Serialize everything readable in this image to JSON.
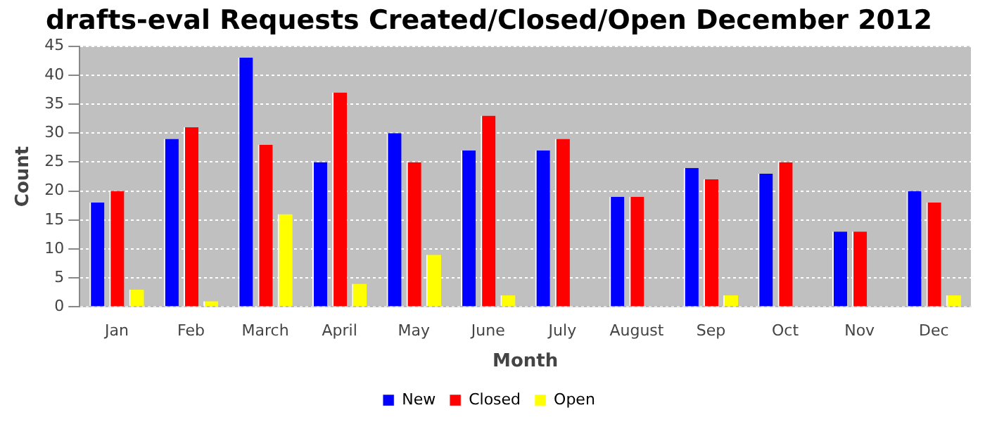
{
  "chart_data": {
    "type": "bar",
    "title": "drafts-eval Requests Created/Closed/Open December 2012",
    "xlabel": "Month",
    "ylabel": "Count",
    "categories": [
      "Jan",
      "Feb",
      "March",
      "April",
      "May",
      "June",
      "July",
      "August",
      "Sep",
      "Oct",
      "Nov",
      "Dec"
    ],
    "series": [
      {
        "name": "New",
        "color": "#0000ff",
        "values": [
          18,
          29,
          43,
          25,
          30,
          27,
          27,
          19,
          24,
          23,
          13,
          20
        ]
      },
      {
        "name": "Closed",
        "color": "#ff0000",
        "values": [
          20,
          31,
          28,
          37,
          25,
          33,
          29,
          19,
          22,
          25,
          13,
          18
        ]
      },
      {
        "name": "Open",
        "color": "#ffff00",
        "values": [
          3,
          1,
          16,
          4,
          9,
          2,
          0,
          0,
          2,
          0,
          0,
          2
        ]
      }
    ],
    "ylim": [
      0,
      45
    ],
    "yticks": [
      0,
      5,
      10,
      15,
      20,
      25,
      30,
      35,
      40,
      45
    ],
    "grid": "y",
    "legend": "bottom"
  }
}
